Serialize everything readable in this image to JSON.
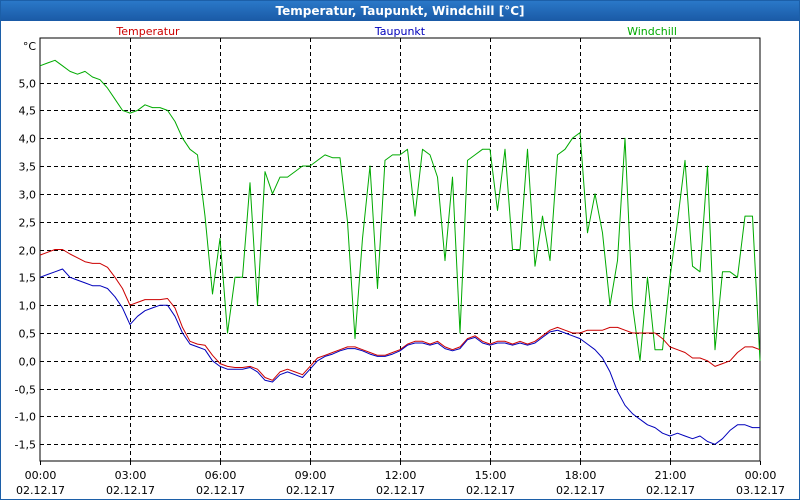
{
  "window": {
    "title": "Temperatur, Taupunkt, Windchill [°C]"
  },
  "chart_data": {
    "type": "line",
    "title": "Temperatur, Taupunkt, Windchill [°C]",
    "ylabel": "°C",
    "xlabel": "",
    "ylim": [
      -1.8,
      5.8
    ],
    "yticks": [
      5.0,
      4.5,
      4.0,
      3.5,
      3.0,
      2.5,
      2.0,
      1.5,
      1.0,
      0.5,
      0.0,
      -0.5,
      -1.0,
      -1.5
    ],
    "ytick_labels": [
      "5,0",
      "4,5",
      "4,0",
      "3,5",
      "3,0",
      "2,5",
      "2,0",
      "1,5",
      "1,0",
      "0,5",
      "0,0",
      "-0,5",
      "-1,0",
      "-1,5"
    ],
    "xlim_hours": [
      0,
      24
    ],
    "xticks_hours": [
      0,
      3,
      6,
      9,
      12,
      15,
      18,
      21,
      24
    ],
    "xtick_time_labels": [
      "00:00",
      "03:00",
      "06:00",
      "09:00",
      "12:00",
      "15:00",
      "18:00",
      "21:00",
      "00:00"
    ],
    "xtick_date_labels": [
      "02.12.17",
      "02.12.17",
      "02.12.17",
      "02.12.17",
      "02.12.17",
      "02.12.17",
      "02.12.17",
      "02.12.17",
      "03.12.17"
    ],
    "grid": true,
    "legend_position": "top",
    "series": [
      {
        "name": "Temperatur",
        "color": "#cc0000",
        "x_hours": [
          0,
          0.25,
          0.5,
          0.75,
          1.0,
          1.25,
          1.5,
          1.75,
          2.0,
          2.25,
          2.5,
          2.75,
          3.0,
          3.25,
          3.5,
          3.75,
          4.0,
          4.25,
          4.5,
          4.75,
          5.0,
          5.25,
          5.5,
          5.75,
          6.0,
          6.25,
          6.5,
          6.75,
          7.0,
          7.25,
          7.5,
          7.75,
          8.0,
          8.25,
          8.5,
          8.75,
          9.0,
          9.25,
          9.5,
          9.75,
          10.0,
          10.25,
          10.5,
          10.75,
          11.0,
          11.25,
          11.5,
          11.75,
          12.0,
          12.25,
          12.5,
          12.75,
          13.0,
          13.25,
          13.5,
          13.75,
          14.0,
          14.25,
          14.5,
          14.75,
          15.0,
          15.25,
          15.5,
          15.75,
          16.0,
          16.25,
          16.5,
          16.75,
          17.0,
          17.25,
          17.5,
          17.75,
          18.0,
          18.25,
          18.5,
          18.75,
          19.0,
          19.25,
          19.5,
          19.75,
          20.0,
          20.25,
          20.5,
          20.75,
          21.0,
          21.25,
          21.5,
          21.75,
          22.0,
          22.25,
          22.5,
          22.75,
          23.0,
          23.25,
          23.5,
          23.75,
          24.0
        ],
        "values": [
          1.9,
          1.95,
          2.0,
          2.0,
          1.92,
          1.85,
          1.78,
          1.75,
          1.75,
          1.68,
          1.5,
          1.3,
          1.0,
          1.05,
          1.1,
          1.1,
          1.1,
          1.12,
          0.95,
          0.6,
          0.35,
          0.3,
          0.28,
          0.1,
          -0.05,
          -0.1,
          -0.12,
          -0.12,
          -0.1,
          -0.15,
          -0.3,
          -0.35,
          -0.2,
          -0.15,
          -0.2,
          -0.25,
          -0.1,
          0.05,
          0.1,
          0.15,
          0.2,
          0.25,
          0.25,
          0.2,
          0.15,
          0.1,
          0.1,
          0.15,
          0.2,
          0.3,
          0.35,
          0.35,
          0.3,
          0.35,
          0.25,
          0.2,
          0.25,
          0.4,
          0.45,
          0.35,
          0.3,
          0.35,
          0.35,
          0.3,
          0.35,
          0.3,
          0.35,
          0.45,
          0.55,
          0.6,
          0.55,
          0.5,
          0.5,
          0.55,
          0.55,
          0.55,
          0.6,
          0.6,
          0.55,
          0.5,
          0.5,
          0.5,
          0.5,
          0.4,
          0.25,
          0.2,
          0.15,
          0.05,
          0.05,
          0.0,
          -0.1,
          -0.05,
          0.0,
          0.15,
          0.25,
          0.25,
          0.2
        ]
      },
      {
        "name": "Taupunkt",
        "color": "#0000bb",
        "x_hours": [
          0,
          0.25,
          0.5,
          0.75,
          1.0,
          1.25,
          1.5,
          1.75,
          2.0,
          2.25,
          2.5,
          2.75,
          3.0,
          3.25,
          3.5,
          3.75,
          4.0,
          4.25,
          4.5,
          4.75,
          5.0,
          5.25,
          5.5,
          5.75,
          6.0,
          6.25,
          6.5,
          6.75,
          7.0,
          7.25,
          7.5,
          7.75,
          8.0,
          8.25,
          8.5,
          8.75,
          9.0,
          9.25,
          9.5,
          9.75,
          10.0,
          10.25,
          10.5,
          10.75,
          11.0,
          11.25,
          11.5,
          11.75,
          12.0,
          12.25,
          12.5,
          12.75,
          13.0,
          13.25,
          13.5,
          13.75,
          14.0,
          14.25,
          14.5,
          14.75,
          15.0,
          15.25,
          15.5,
          15.75,
          16.0,
          16.25,
          16.5,
          16.75,
          17.0,
          17.25,
          17.5,
          17.75,
          18.0,
          18.25,
          18.5,
          18.75,
          19.0,
          19.25,
          19.5,
          19.75,
          20.0,
          20.25,
          20.5,
          20.75,
          21.0,
          21.25,
          21.5,
          21.75,
          22.0,
          22.25,
          22.5,
          22.75,
          23.0,
          23.25,
          23.5,
          23.75,
          24.0
        ],
        "values": [
          1.5,
          1.55,
          1.6,
          1.65,
          1.5,
          1.45,
          1.4,
          1.35,
          1.35,
          1.3,
          1.15,
          0.95,
          0.65,
          0.8,
          0.9,
          0.95,
          1.0,
          1.0,
          0.8,
          0.5,
          0.3,
          0.25,
          0.2,
          0.0,
          -0.1,
          -0.15,
          -0.15,
          -0.15,
          -0.12,
          -0.2,
          -0.35,
          -0.38,
          -0.25,
          -0.2,
          -0.25,
          -0.3,
          -0.15,
          0.0,
          0.08,
          0.12,
          0.18,
          0.22,
          0.22,
          0.18,
          0.12,
          0.08,
          0.08,
          0.12,
          0.18,
          0.28,
          0.32,
          0.32,
          0.28,
          0.32,
          0.22,
          0.18,
          0.22,
          0.38,
          0.42,
          0.32,
          0.28,
          0.32,
          0.32,
          0.28,
          0.32,
          0.28,
          0.32,
          0.42,
          0.52,
          0.55,
          0.5,
          0.45,
          0.4,
          0.3,
          0.2,
          0.05,
          -0.2,
          -0.55,
          -0.8,
          -0.95,
          -1.05,
          -1.15,
          -1.2,
          -1.3,
          -1.35,
          -1.3,
          -1.35,
          -1.4,
          -1.35,
          -1.45,
          -1.5,
          -1.4,
          -1.25,
          -1.15,
          -1.15,
          -1.2,
          -1.2
        ]
      },
      {
        "name": "Windchill",
        "color": "#00aa00",
        "x_hours": [
          0,
          0.25,
          0.5,
          0.75,
          1.0,
          1.25,
          1.5,
          1.75,
          2.0,
          2.25,
          2.5,
          2.75,
          3.0,
          3.25,
          3.5,
          3.75,
          4.0,
          4.25,
          4.5,
          4.75,
          5.0,
          5.25,
          5.5,
          5.75,
          6.0,
          6.25,
          6.5,
          6.75,
          7.0,
          7.25,
          7.5,
          7.75,
          8.0,
          8.25,
          8.5,
          8.75,
          9.0,
          9.25,
          9.5,
          9.75,
          10.0,
          10.25,
          10.5,
          10.75,
          11.0,
          11.25,
          11.5,
          11.75,
          12.0,
          12.25,
          12.5,
          12.75,
          13.0,
          13.25,
          13.5,
          13.75,
          14.0,
          14.25,
          14.5,
          14.75,
          15.0,
          15.25,
          15.5,
          15.75,
          16.0,
          16.25,
          16.5,
          16.75,
          17.0,
          17.25,
          17.5,
          17.75,
          18.0,
          18.25,
          18.5,
          18.75,
          19.0,
          19.25,
          19.5,
          19.75,
          20.0,
          20.25,
          20.5,
          20.75,
          21.0,
          21.25,
          21.5,
          21.75,
          22.0,
          22.25,
          22.5,
          22.75,
          23.0,
          23.25,
          23.5,
          23.75,
          24.0
        ],
        "values": [
          5.3,
          5.35,
          5.4,
          5.3,
          5.2,
          5.15,
          5.2,
          5.1,
          5.05,
          4.9,
          4.7,
          4.5,
          4.45,
          4.5,
          4.6,
          4.55,
          4.55,
          4.5,
          4.3,
          4.0,
          3.8,
          3.7,
          2.6,
          1.2,
          2.2,
          0.5,
          1.5,
          1.5,
          3.2,
          1.0,
          3.4,
          3.0,
          3.3,
          3.3,
          3.4,
          3.5,
          3.5,
          3.6,
          3.7,
          3.65,
          3.65,
          2.5,
          0.4,
          2.2,
          3.5,
          1.3,
          3.6,
          3.7,
          3.7,
          3.8,
          2.6,
          3.8,
          3.7,
          3.3,
          1.8,
          3.3,
          0.5,
          3.6,
          3.7,
          3.8,
          3.8,
          2.7,
          3.8,
          2.0,
          2.0,
          3.8,
          1.7,
          2.6,
          1.8,
          3.7,
          3.8,
          4.0,
          4.1,
          2.3,
          3.0,
          2.3,
          1.0,
          1.8,
          4.0,
          1.0,
          0.0,
          1.5,
          0.2,
          0.2,
          1.5,
          2.5,
          3.6,
          1.7,
          1.6,
          3.5,
          0.2,
          1.6,
          1.6,
          1.5,
          2.6,
          2.6,
          0.0
        ]
      }
    ]
  }
}
